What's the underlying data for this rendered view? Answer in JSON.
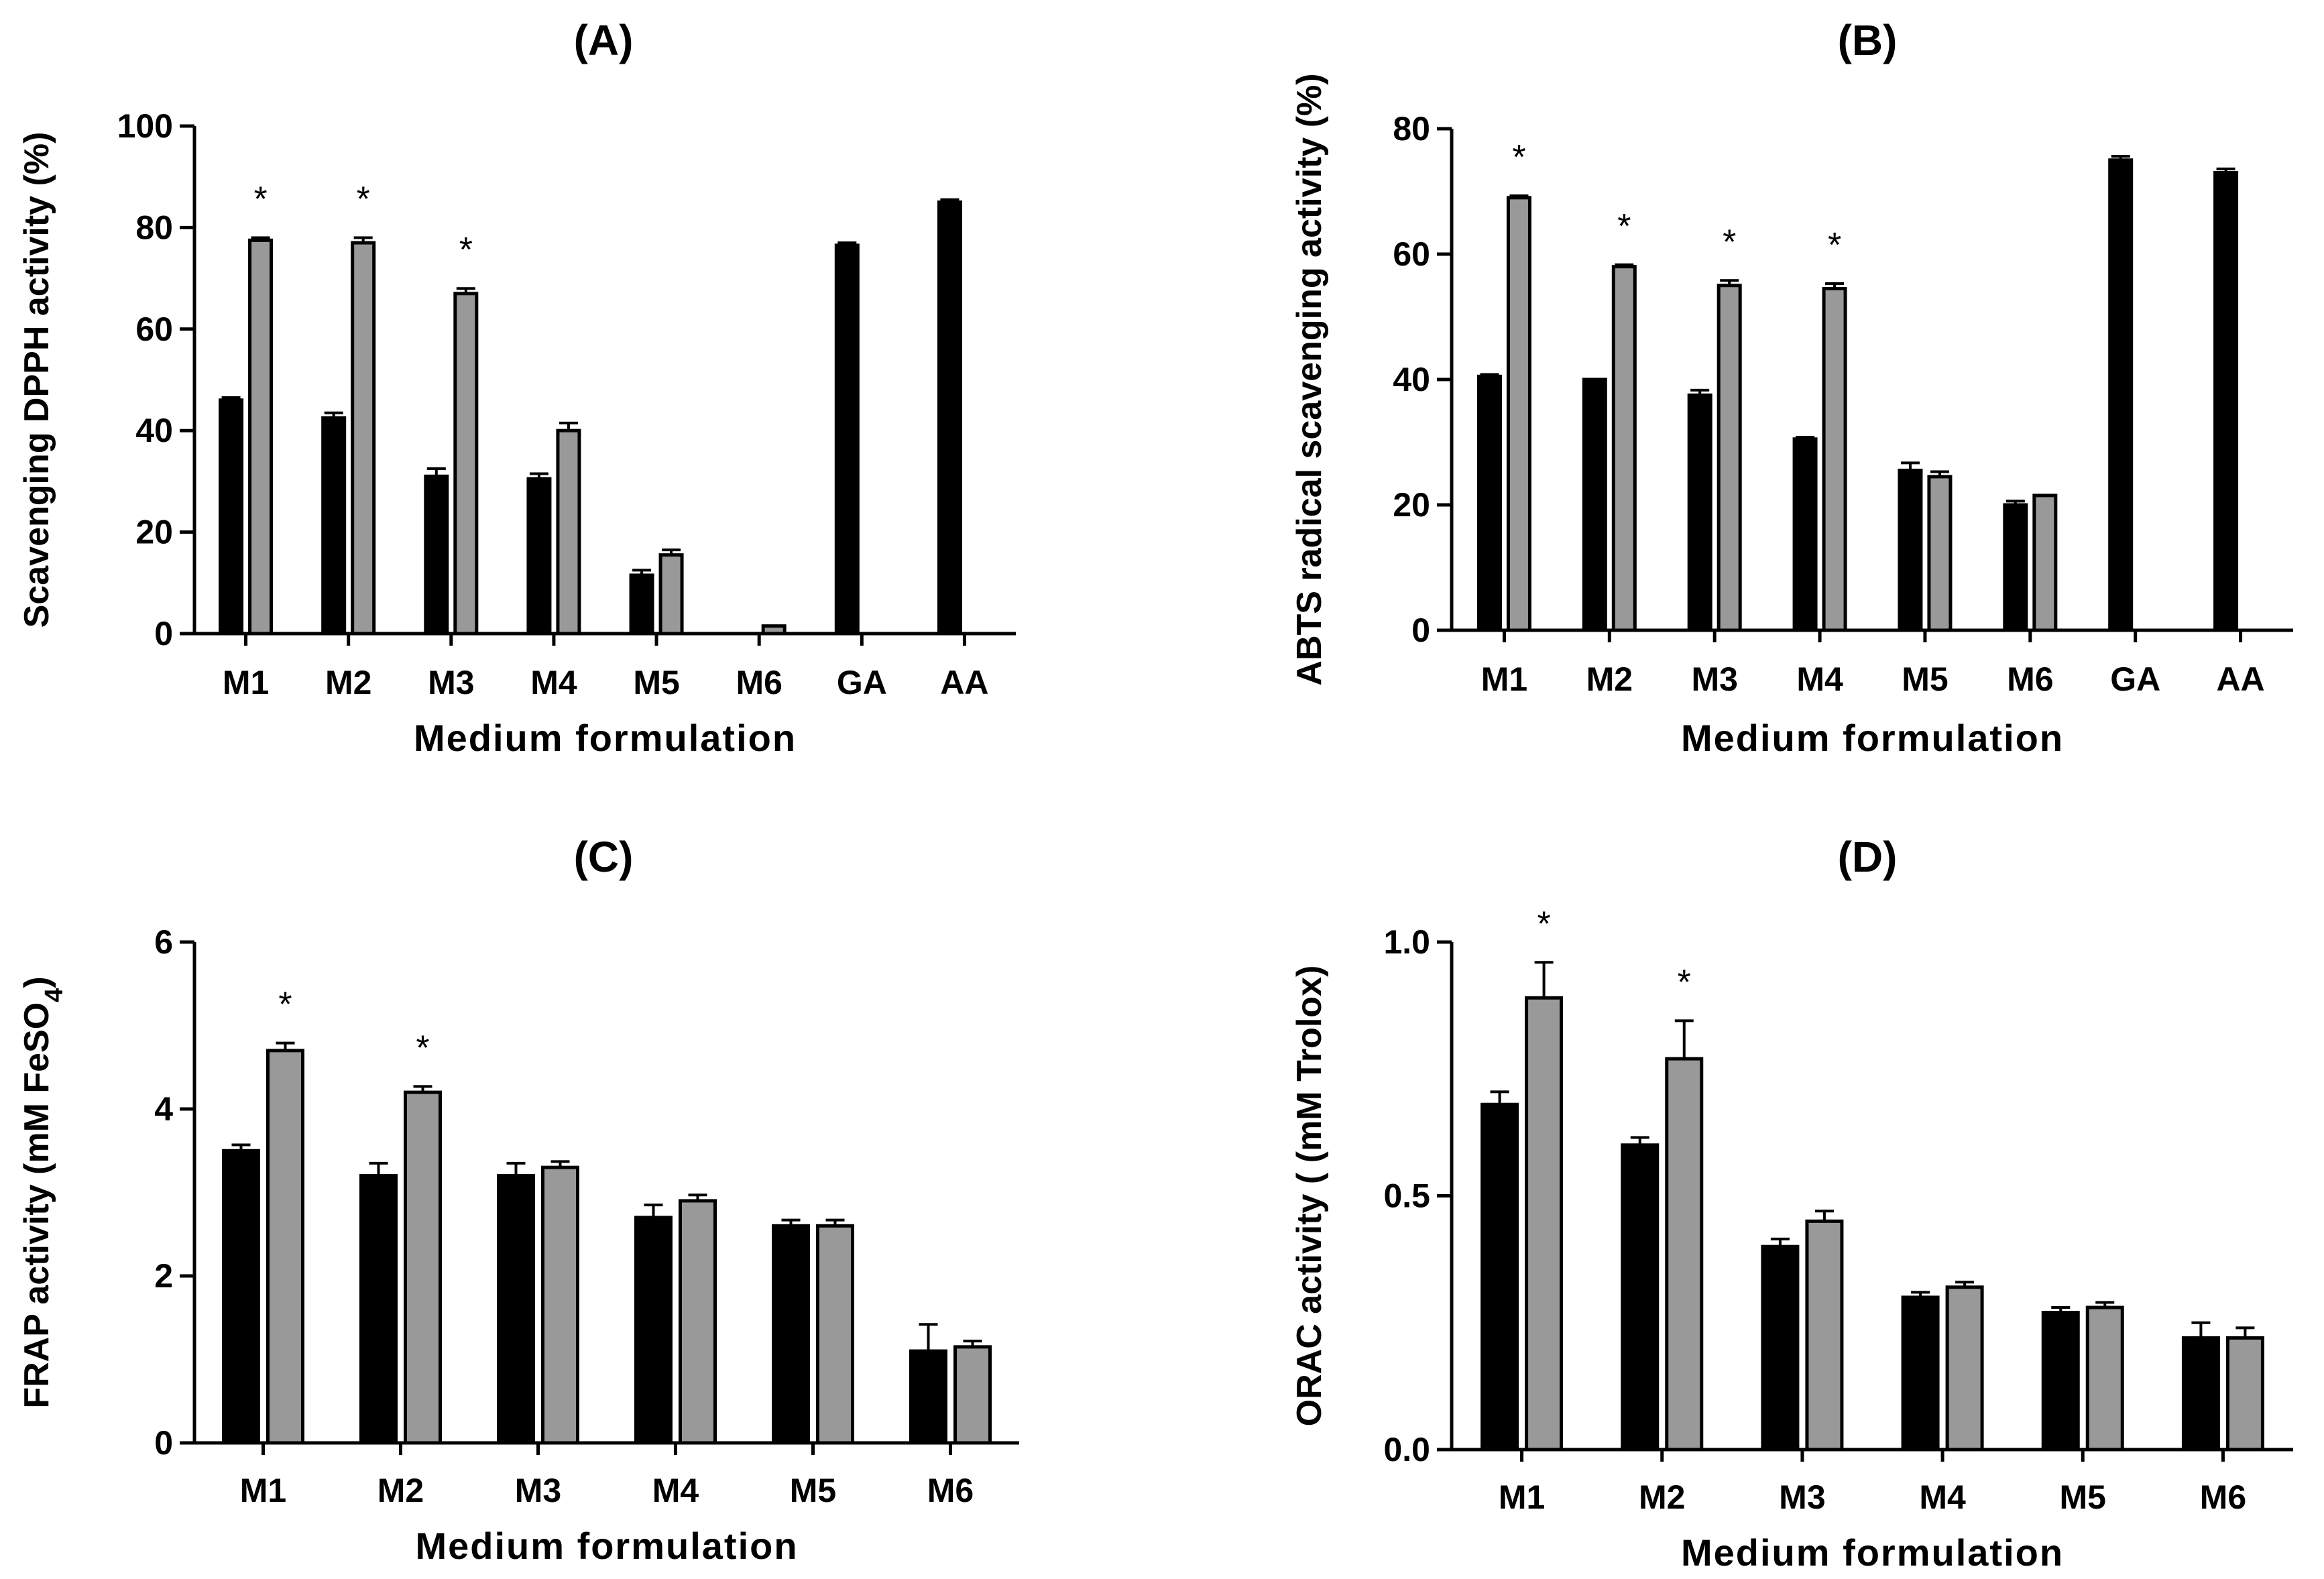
{
  "chart_data": [
    {
      "type": "bar",
      "title": "(A)",
      "xlabel": "Medium formulation",
      "ylabel": "Scavenging DPPH activity (%)",
      "ylim": [
        0,
        100
      ],
      "yticks": [
        "0",
        "20",
        "40",
        "60",
        "80",
        "100"
      ],
      "categories": [
        "M1",
        "M2",
        "M3",
        "M4",
        "M5",
        "M6",
        "GA",
        "AA"
      ],
      "series": [
        {
          "color": "#000000",
          "values": [
            46,
            42.5,
            31,
            30.5,
            11.5,
            0,
            76.5,
            85
          ],
          "errors": [
            0.5,
            1,
            1.5,
            1,
            1,
            0,
            0.5,
            0.5
          ]
        },
        {
          "color": "#999999",
          "values": [
            77.5,
            77,
            67,
            40,
            15.5,
            1.5,
            null,
            null
          ],
          "errors": [
            0.5,
            1,
            1,
            1.5,
            1,
            0,
            0,
            0
          ]
        }
      ],
      "significant": [
        true,
        true,
        true,
        false,
        false,
        false,
        false,
        false
      ],
      "annotation": "*",
      "grid": false
    },
    {
      "type": "bar",
      "title": "(B)",
      "xlabel": "Medium formulation",
      "ylabel": "ABTS radical scavenging activity (%)",
      "ylim": [
        0,
        80
      ],
      "yticks": [
        "0",
        "20",
        "40",
        "60",
        "80"
      ],
      "categories": [
        "M1",
        "M2",
        "M3",
        "M4",
        "M5",
        "M6",
        "GA",
        "AA"
      ],
      "series": [
        {
          "color": "#000000",
          "values": [
            40.5,
            40,
            37.5,
            30.5,
            25.5,
            20,
            75,
            73
          ],
          "errors": [
            0.3,
            0,
            0.8,
            0.3,
            1.2,
            0.6,
            0.6,
            0.6
          ]
        },
        {
          "color": "#999999",
          "values": [
            69,
            58,
            55,
            54.5,
            24.5,
            21.5,
            null,
            null
          ],
          "errors": [
            0.3,
            0.3,
            0.8,
            0.8,
            0.8,
            0,
            0,
            0
          ]
        }
      ],
      "significant": [
        true,
        true,
        true,
        true,
        false,
        false,
        false,
        false
      ],
      "annotation": "*",
      "grid": false
    },
    {
      "type": "bar",
      "title": "(C)",
      "xlabel": "Medium formulation",
      "ylabel_main": "FRAP activity (mM FeSO",
      "ylabel_sub": "4",
      "ylabel_end": ")",
      "ylim": [
        0,
        6
      ],
      "yticks": [
        "0",
        "2",
        "4",
        "6"
      ],
      "categories": [
        "M1",
        "M2",
        "M3",
        "M4",
        "M5",
        "M6"
      ],
      "series": [
        {
          "color": "#000000",
          "values": [
            3.5,
            3.2,
            3.2,
            2.7,
            2.6,
            1.1
          ],
          "errors": [
            0.07,
            0.15,
            0.15,
            0.15,
            0.07,
            0.32
          ]
        },
        {
          "color": "#999999",
          "values": [
            4.7,
            4.2,
            3.3,
            2.9,
            2.6,
            1.15
          ],
          "errors": [
            0.09,
            0.07,
            0.07,
            0.07,
            0.07,
            0.07
          ]
        }
      ],
      "significant": [
        true,
        true,
        false,
        false,
        false,
        false
      ],
      "annotation": "*",
      "grid": false
    },
    {
      "type": "bar",
      "title": "(D)",
      "xlabel": "Medium formulation",
      "ylabel": "ORAC activity ( (mM Trolox)",
      "ylim": [
        0,
        1.0
      ],
      "yticks": [
        "0.0",
        "0.5",
        "1.0"
      ],
      "categories": [
        "M1",
        "M2",
        "M3",
        "M4",
        "M5",
        "M6"
      ],
      "series": [
        {
          "color": "#000000",
          "values": [
            0.68,
            0.6,
            0.4,
            0.3,
            0.27,
            0.22
          ],
          "errors": [
            0.025,
            0.015,
            0.015,
            0.01,
            0.01,
            0.03
          ]
        },
        {
          "color": "#999999",
          "values": [
            0.89,
            0.77,
            0.45,
            0.32,
            0.28,
            0.22
          ],
          "errors": [
            0.07,
            0.075,
            0.02,
            0.01,
            0.01,
            0.02
          ]
        }
      ],
      "significant": [
        true,
        true,
        false,
        false,
        false,
        false
      ],
      "annotation": "*",
      "grid": false
    }
  ]
}
